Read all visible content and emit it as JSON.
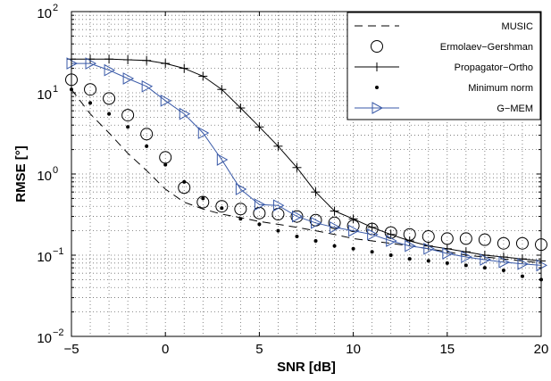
{
  "chart_data": {
    "type": "line",
    "title": "",
    "xlabel": "SNR [dB]",
    "ylabel": "RMSE [°]",
    "xlim": [
      -5,
      20
    ],
    "ylim": [
      0.01,
      100
    ],
    "yscale": "log",
    "grid": true,
    "legend_position": "top-right",
    "x_ticks": [
      -5,
      0,
      5,
      10,
      15,
      20
    ],
    "x_tick_labels": [
      "−5",
      "0",
      "5",
      "10",
      "15",
      "20"
    ],
    "y_tick_mantissa": [
      "10",
      "10",
      "10",
      "10",
      "10"
    ],
    "y_tick_exponents": [
      "−2",
      "−1",
      "0",
      "1",
      "2"
    ],
    "x": [
      -5,
      -4,
      -3,
      -2,
      -1,
      0,
      1,
      2,
      3,
      4,
      5,
      6,
      7,
      8,
      9,
      10,
      11,
      12,
      13,
      14,
      15,
      16,
      17,
      18,
      19,
      20
    ],
    "series": [
      {
        "name": "MUSIC",
        "style": "dashed",
        "marker": "none",
        "color": "#000000",
        "values": [
          11,
          5.5,
          3.2,
          1.8,
          1.1,
          0.65,
          0.45,
          0.37,
          0.32,
          0.29,
          0.26,
          0.24,
          0.22,
          0.2,
          0.18,
          0.16,
          0.15,
          0.14,
          0.13,
          0.12,
          0.11,
          0.1,
          0.095,
          0.09,
          0.085,
          0.08
        ]
      },
      {
        "name": "Ermolaev−Gershman",
        "style": "none",
        "marker": "circle",
        "color": "#000000",
        "values": [
          14.5,
          11,
          8.5,
          5.3,
          3.1,
          1.6,
          0.68,
          0.45,
          0.4,
          0.37,
          0.33,
          0.32,
          0.3,
          0.27,
          0.25,
          0.23,
          0.21,
          0.19,
          0.18,
          0.17,
          0.16,
          0.16,
          0.155,
          0.14,
          0.14,
          0.135
        ]
      },
      {
        "name": "Propagator−Ortho",
        "style": "solid",
        "marker": "plus",
        "color": "#000000",
        "values": [
          26,
          26,
          26,
          25.5,
          25,
          23,
          20,
          16,
          11,
          6.5,
          3.8,
          2.2,
          1.2,
          0.6,
          0.35,
          0.28,
          0.22,
          0.18,
          0.15,
          0.13,
          0.12,
          0.11,
          0.1,
          0.095,
          0.09,
          0.085
        ]
      },
      {
        "name": "Minimum norm",
        "style": "none",
        "marker": "dot",
        "color": "#000000",
        "values": [
          11,
          7.5,
          5.5,
          3.8,
          2.2,
          1.3,
          0.8,
          0.5,
          0.38,
          0.28,
          0.24,
          0.2,
          0.17,
          0.15,
          0.13,
          0.12,
          0.11,
          0.1,
          0.09,
          0.085,
          0.08,
          0.075,
          0.07,
          0.065,
          0.055,
          0.05
        ]
      },
      {
        "name": "G−MEM",
        "style": "solid",
        "marker": "triangle-right",
        "color": "#3a5aa8",
        "values": [
          23,
          23,
          19,
          15,
          12,
          8,
          5.5,
          3.2,
          1.5,
          0.65,
          0.42,
          0.41,
          0.3,
          0.25,
          0.22,
          0.2,
          0.18,
          0.15,
          0.13,
          0.12,
          0.105,
          0.095,
          0.088,
          0.082,
          0.078,
          0.075
        ]
      }
    ]
  }
}
